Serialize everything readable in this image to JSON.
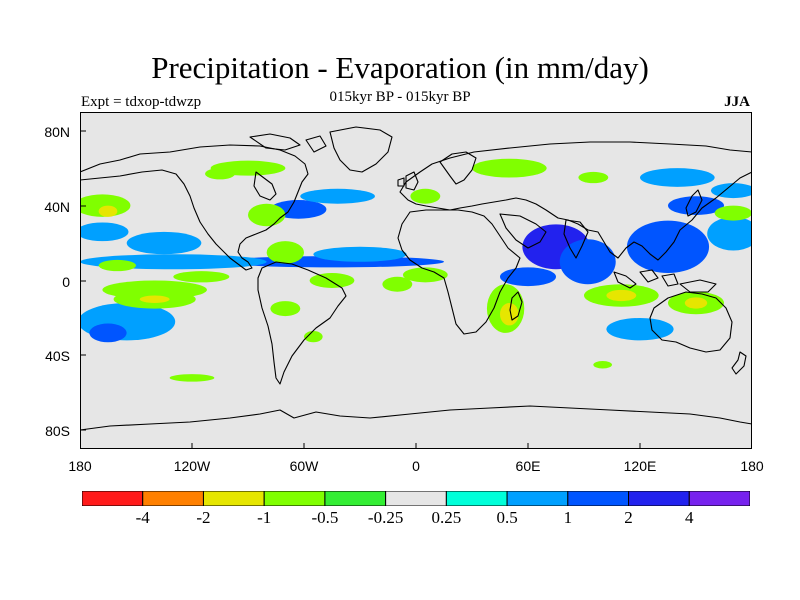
{
  "title": "Precipitation - Evaporation (in mm/day)",
  "subtitle": "015kyr BP - 015kyr BP",
  "experiment": "Expt = tdxop-tdwzp",
  "season": "JJA",
  "y_ticks": [
    "80N",
    "40N",
    "0",
    "40S",
    "80S"
  ],
  "x_ticks": [
    "180",
    "120W",
    "60W",
    "0",
    "60E",
    "120E",
    "180"
  ],
  "colorbar": {
    "colors": [
      "#ff1a1a",
      "#ff8000",
      "#e6e600",
      "#80ff00",
      "#33ee33",
      "#e6e6e6",
      "#00ffd9",
      "#00a0ff",
      "#0055ff",
      "#2222ee",
      "#7722ee"
    ],
    "labels": [
      "-4",
      "-2",
      "-1",
      "-0.5",
      "-0.25",
      "0.25",
      "0.5",
      "1",
      "2",
      "4"
    ]
  },
  "chart_data": {
    "type": "heatmap",
    "title": "Precipitation - Evaporation (in mm/day)",
    "subtitle": "015kyr BP - 015kyr BP",
    "xlabel": "",
    "ylabel": "",
    "xlim": [
      -180,
      180
    ],
    "ylim": [
      -90,
      90
    ],
    "x_ticks": [
      -180,
      -120,
      -60,
      0,
      60,
      120,
      180
    ],
    "y_ticks": [
      80,
      40,
      0,
      -40,
      -80
    ],
    "levels": [
      -4,
      -2,
      -1,
      -0.5,
      -0.25,
      0.25,
      0.5,
      1,
      2,
      4
    ],
    "background": "#e6e6e6",
    "regions": [
      {
        "lon": -45,
        "lat": 10,
        "rlon": 60,
        "rlat": 3,
        "value": 1.5
      },
      {
        "lon": -30,
        "lat": 14,
        "rlon": 25,
        "rlat": 4,
        "value": 0.7
      },
      {
        "lon": -130,
        "lat": 10,
        "rlon": 50,
        "rlat": 4,
        "value": 0.6
      },
      {
        "lon": 75,
        "lat": 18,
        "rlon": 18,
        "rlat": 12,
        "value": 2.5
      },
      {
        "lon": 92,
        "lat": 10,
        "rlon": 15,
        "rlat": 12,
        "value": 1.8
      },
      {
        "lon": 60,
        "lat": 2,
        "rlon": 15,
        "rlat": 5,
        "value": 1.5
      },
      {
        "lon": 135,
        "lat": 18,
        "rlon": 22,
        "rlat": 14,
        "value": 1.2
      },
      {
        "lon": 150,
        "lat": 40,
        "rlon": 15,
        "rlat": 5,
        "value": 1.5
      },
      {
        "lon": 170,
        "lat": 48,
        "rlon": 12,
        "rlat": 4,
        "value": 0.7
      },
      {
        "lon": 170,
        "lat": 25,
        "rlon": 14,
        "rlat": 9,
        "value": 0.7
      },
      {
        "lon": -63,
        "lat": 38,
        "rlon": 15,
        "rlat": 5,
        "value": 1.5
      },
      {
        "lon": -42,
        "lat": 45,
        "rlon": 20,
        "rlat": 4,
        "value": 0.7
      },
      {
        "lon": -168,
        "lat": 26,
        "rlon": 14,
        "rlat": 5,
        "value": 0.7
      },
      {
        "lon": -135,
        "lat": 20,
        "rlon": 20,
        "rlat": 6,
        "value": 0.6
      },
      {
        "lon": -155,
        "lat": -22,
        "rlon": 26,
        "rlat": 10,
        "value": 0.7
      },
      {
        "lon": -165,
        "lat": -28,
        "rlon": 10,
        "rlat": 5,
        "value": 1.8
      },
      {
        "lon": 120,
        "lat": -26,
        "rlon": 18,
        "rlat": 6,
        "value": 0.6
      },
      {
        "lon": 140,
        "lat": 55,
        "rlon": 20,
        "rlat": 5,
        "value": 0.7
      },
      {
        "lon": -70,
        "lat": 15,
        "rlon": 10,
        "rlat": 6,
        "value": -0.5
      },
      {
        "lon": -140,
        "lat": -5,
        "rlon": 28,
        "rlat": 5,
        "value": -0.5
      },
      {
        "lon": -115,
        "lat": 2,
        "rlon": 15,
        "rlat": 3,
        "value": -0.5
      },
      {
        "lon": -45,
        "lat": 0,
        "rlon": 12,
        "rlat": 4,
        "value": -0.7
      },
      {
        "lon": -10,
        "lat": -2,
        "rlon": 8,
        "rlat": 4,
        "value": -0.5
      },
      {
        "lon": 5,
        "lat": 3,
        "rlon": 12,
        "rlat": 4,
        "value": -0.5
      },
      {
        "lon": 48,
        "lat": -15,
        "rlon": 10,
        "rlat": 13,
        "value": -0.6
      },
      {
        "lon": 50,
        "lat": -18,
        "rlon": 5,
        "rlat": 6,
        "value": -1.5
      },
      {
        "lon": 110,
        "lat": -8,
        "rlon": 20,
        "rlat": 6,
        "value": -0.6
      },
      {
        "lon": 110,
        "lat": -8,
        "rlon": 8,
        "rlat": 3,
        "value": -1.5
      },
      {
        "lon": 150,
        "lat": -12,
        "rlon": 15,
        "rlat": 6,
        "value": -0.6
      },
      {
        "lon": 150,
        "lat": -12,
        "rlon": 6,
        "rlat": 3,
        "value": -1.5
      },
      {
        "lon": -140,
        "lat": -10,
        "rlon": 22,
        "rlat": 5,
        "value": -0.6
      },
      {
        "lon": -140,
        "lat": -10,
        "rlon": 8,
        "rlat": 2,
        "value": -1.5
      },
      {
        "lon": -168,
        "lat": 40,
        "rlon": 15,
        "rlat": 6,
        "value": -0.5
      },
      {
        "lon": -165,
        "lat": 37,
        "rlon": 5,
        "rlat": 3,
        "value": -1.5
      },
      {
        "lon": 170,
        "lat": 36,
        "rlon": 10,
        "rlat": 4,
        "value": -0.5
      },
      {
        "lon": -80,
        "lat": 35,
        "rlon": 10,
        "rlat": 6,
        "value": -0.5
      },
      {
        "lon": -90,
        "lat": 60,
        "rlon": 20,
        "rlat": 4,
        "value": -0.5
      },
      {
        "lon": 50,
        "lat": 60,
        "rlon": 20,
        "rlat": 5,
        "value": -0.5
      },
      {
        "lon": 5,
        "lat": 45,
        "rlon": 8,
        "rlat": 4,
        "value": -0.5
      },
      {
        "lon": -105,
        "lat": 57,
        "rlon": 8,
        "rlat": 3,
        "value": -0.5
      },
      {
        "lon": 95,
        "lat": 55,
        "rlon": 8,
        "rlat": 3,
        "value": -0.5
      },
      {
        "lon": -70,
        "lat": -15,
        "rlon": 8,
        "rlat": 4,
        "value": -0.5
      },
      {
        "lon": -160,
        "lat": 8,
        "rlon": 10,
        "rlat": 3,
        "value": -0.5
      },
      {
        "lon": 100,
        "lat": -45,
        "rlon": 5,
        "rlat": 2,
        "value": -0.5
      },
      {
        "lon": -120,
        "lat": -52,
        "rlon": 12,
        "rlat": 2,
        "value": -0.5
      },
      {
        "lon": -55,
        "lat": -30,
        "rlon": 5,
        "rlat": 3,
        "value": -0.5
      }
    ]
  }
}
